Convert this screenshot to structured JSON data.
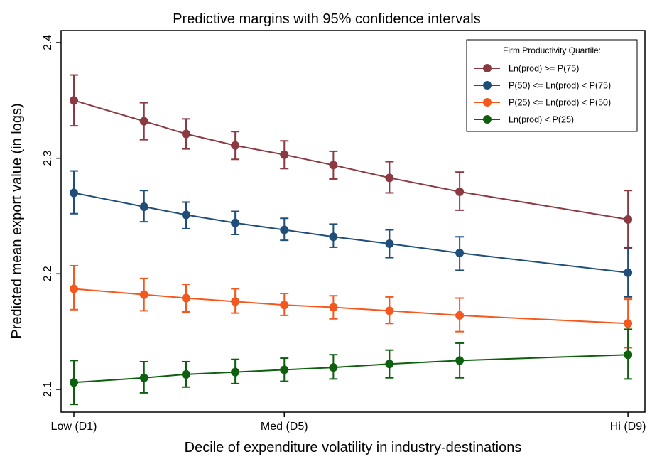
{
  "chart_data": {
    "type": "line",
    "title": "Predictive margins with 95% confidence intervals",
    "xlabel": "Decile of expenditure volatility in industry-destinations",
    "ylabel": "Predicted mean export value (in logs)",
    "xlim": [
      1,
      9
    ],
    "ylim": [
      2.09,
      2.41
    ],
    "x": [
      1,
      2,
      2.6,
      3.3,
      4,
      4.7,
      5.5,
      6.5,
      8.9
    ],
    "x_ticks": [
      {
        "value": 1,
        "label": "Low (D1)"
      },
      {
        "value": 4,
        "label": "Med (D5)"
      },
      {
        "value": 8.9,
        "label": "Hi (D9)"
      }
    ],
    "y_ticks": [
      {
        "value": 2.1,
        "label": "2.1"
      },
      {
        "value": 2.2,
        "label": "2.2"
      },
      {
        "value": 2.3,
        "label": "2.3"
      },
      {
        "value": 2.4,
        "label": "2.4"
      }
    ],
    "grid": false,
    "legend": {
      "title": "Firm Productivity Quartile:",
      "position": "top-right"
    },
    "series": [
      {
        "name": "Ln(prod) >= P(75)",
        "color": "#8b3a42",
        "values": [
          2.35,
          2.332,
          2.321,
          2.311,
          2.303,
          2.294,
          2.283,
          2.271,
          2.247
        ],
        "lower": [
          2.328,
          2.316,
          2.308,
          2.299,
          2.291,
          2.282,
          2.27,
          2.255,
          2.222
        ],
        "upper": [
          2.372,
          2.348,
          2.334,
          2.323,
          2.315,
          2.306,
          2.297,
          2.288,
          2.272
        ]
      },
      {
        "name": "P(50) <= Ln(prod) < P(75)",
        "color": "#1f4e79",
        "values": [
          2.27,
          2.258,
          2.251,
          2.244,
          2.238,
          2.232,
          2.226,
          2.218,
          2.201
        ],
        "lower": [
          2.252,
          2.245,
          2.239,
          2.234,
          2.229,
          2.223,
          2.214,
          2.203,
          2.18
        ],
        "upper": [
          2.289,
          2.272,
          2.262,
          2.254,
          2.248,
          2.243,
          2.238,
          2.232,
          2.223
        ]
      },
      {
        "name": "P(25) <= Ln(prod) < P(50)",
        "color": "#f4581e",
        "values": [
          2.187,
          2.182,
          2.179,
          2.176,
          2.173,
          2.171,
          2.168,
          2.164,
          2.157
        ],
        "lower": [
          2.169,
          2.168,
          2.167,
          2.166,
          2.164,
          2.161,
          2.157,
          2.15,
          2.136
        ],
        "upper": [
          2.207,
          2.196,
          2.191,
          2.187,
          2.183,
          2.181,
          2.18,
          2.179,
          2.178
        ]
      },
      {
        "name": "Ln(prod) < P(25)",
        "color": "#0e5f0e",
        "values": [
          2.106,
          2.11,
          2.113,
          2.115,
          2.117,
          2.119,
          2.122,
          2.125,
          2.13
        ],
        "lower": [
          2.087,
          2.097,
          2.102,
          2.105,
          2.107,
          2.109,
          2.11,
          2.11,
          2.109
        ],
        "upper": [
          2.125,
          2.124,
          2.124,
          2.126,
          2.127,
          2.13,
          2.134,
          2.14,
          2.152
        ]
      }
    ]
  }
}
